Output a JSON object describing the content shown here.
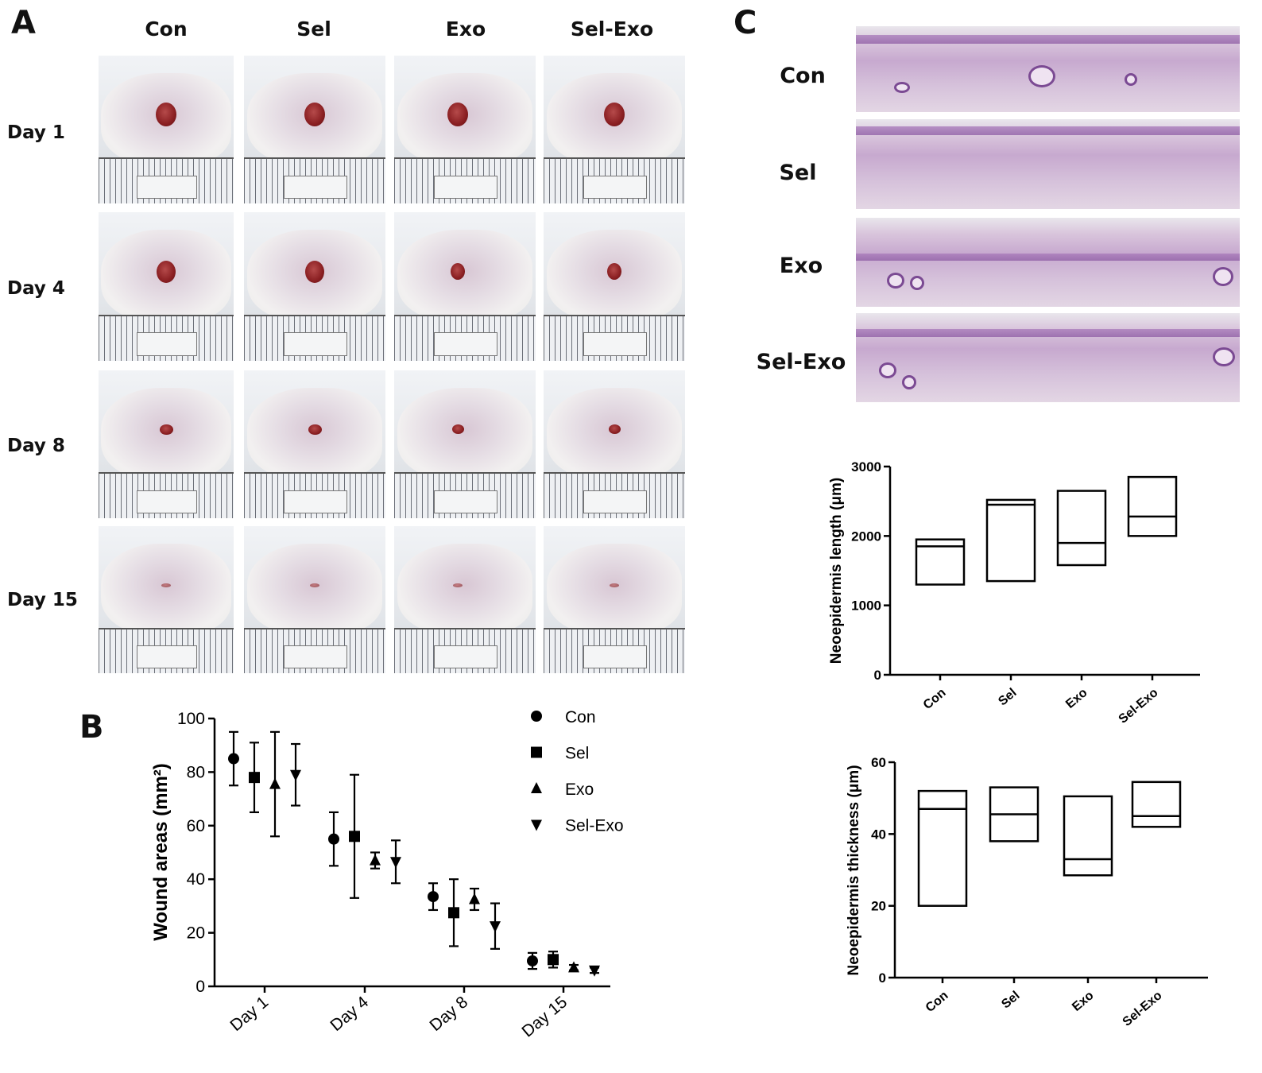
{
  "panelA": {
    "letter": "A",
    "columns": [
      "Con",
      "Sel",
      "Exo",
      "Sel-Exo"
    ],
    "rows": [
      "Day 1",
      "Day 4",
      "Day 8",
      "Day 15"
    ]
  },
  "panelB": {
    "letter": "B"
  },
  "panelC": {
    "letter": "C",
    "histology_labels": [
      "Con",
      "Sel",
      "Exo",
      "Sel-Exo"
    ]
  },
  "chart_data": [
    {
      "id": "wound-area",
      "type": "scatter",
      "ylabel": "Wound areas (mm²)",
      "ylim": [
        0,
        100
      ],
      "yticks": [
        0,
        20,
        40,
        60,
        80,
        100
      ],
      "categories": [
        "Day 1",
        "Day 4",
        "Day 8",
        "Day 15"
      ],
      "legend_position": "top-right",
      "series": [
        {
          "name": "Con",
          "marker": "circle",
          "values": [
            85,
            55,
            33.5,
            9.5
          ],
          "errors": [
            10,
            10,
            5,
            3
          ]
        },
        {
          "name": "Sel",
          "marker": "square",
          "values": [
            78,
            56,
            27.5,
            10
          ],
          "errors": [
            13,
            23,
            12.5,
            3
          ]
        },
        {
          "name": "Exo",
          "marker": "triangle-up",
          "values": [
            75.5,
            47,
            32.5,
            7
          ],
          "errors": [
            19.5,
            3,
            4,
            1
          ]
        },
        {
          "name": "Sel-Exo",
          "marker": "triangle-down",
          "values": [
            79,
            46.5,
            22.5,
            6
          ],
          "errors": [
            11.5,
            8,
            8.5,
            1
          ]
        }
      ]
    },
    {
      "id": "neo-length",
      "type": "box",
      "ylabel": "Neoepidermis length (μm)",
      "ylim": [
        0,
        3000
      ],
      "yticks": [
        0,
        1000,
        2000,
        3000
      ],
      "categories": [
        "Con",
        "Sel",
        "Exo",
        "Sel-Exo"
      ],
      "boxes": [
        {
          "min": 1300,
          "median": 1850,
          "max": 1950
        },
        {
          "min": 1350,
          "median": 2450,
          "max": 2520
        },
        {
          "min": 1580,
          "median": 1900,
          "max": 2650
        },
        {
          "min": 2000,
          "median": 2280,
          "max": 2850
        }
      ]
    },
    {
      "id": "neo-thickness",
      "type": "box",
      "ylabel": "Neoepidermis thickness (μm)",
      "ylim": [
        0,
        60
      ],
      "yticks": [
        0,
        20,
        40,
        60
      ],
      "categories": [
        "Con",
        "Sel",
        "Exo",
        "Sel-Exo"
      ],
      "boxes": [
        {
          "min": 20,
          "median": 47,
          "max": 52
        },
        {
          "min": 38,
          "median": 45.5,
          "max": 53
        },
        {
          "min": 28.5,
          "median": 33,
          "max": 50.5
        },
        {
          "min": 42,
          "median": 45,
          "max": 54.5
        }
      ]
    }
  ]
}
